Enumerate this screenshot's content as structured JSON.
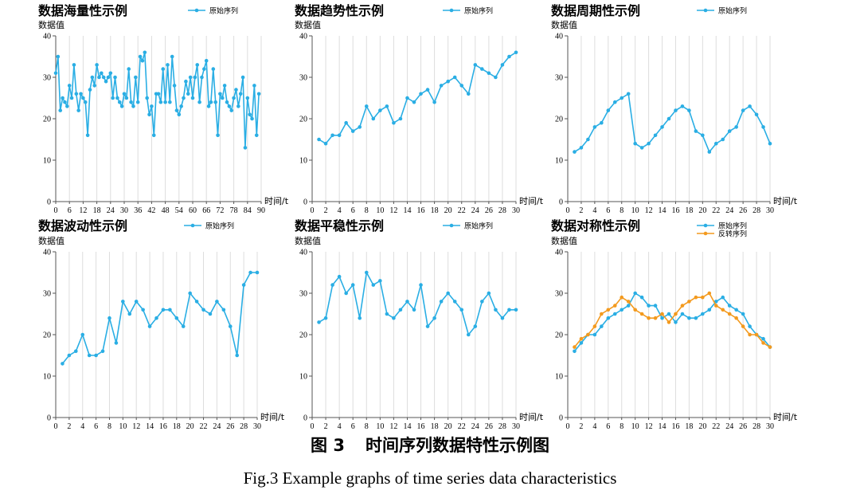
{
  "colors": {
    "series": "#2aaee4",
    "reversed": "#f39a1e",
    "grid": "#dddddd",
    "axis": "#555555"
  },
  "caption": {
    "cn_num": "图 3",
    "cn_text": "时间序列数据特性示例图",
    "en": "Fig.3    Example graphs of time series data characteristics"
  },
  "chart_data": [
    {
      "type": "line",
      "title": "数据海量性示例",
      "ylabel": "数据值",
      "xlabel": "时间/t",
      "ylim": [
        0,
        40
      ],
      "yticks": [
        0,
        10,
        20,
        30,
        40
      ],
      "xlim": [
        0,
        90
      ],
      "xticks": [
        0,
        6,
        12,
        18,
        24,
        30,
        36,
        42,
        48,
        54,
        60,
        66,
        72,
        78,
        84,
        90
      ],
      "grid": "vertical",
      "legend": "top-right",
      "series": [
        {
          "name": "原始序列",
          "x": [
            0,
            1,
            2,
            3,
            4,
            5,
            6,
            7,
            8,
            9,
            10,
            11,
            12,
            13,
            14,
            15,
            16,
            17,
            18,
            19,
            20,
            21,
            22,
            23,
            24,
            25,
            26,
            27,
            28,
            29,
            30,
            31,
            32,
            33,
            34,
            35,
            36,
            37,
            38,
            39,
            40,
            41,
            42,
            43,
            44,
            45,
            46,
            47,
            48,
            49,
            50,
            51,
            52,
            53,
            54,
            55,
            56,
            57,
            58,
            59,
            60,
            61,
            62,
            63,
            64,
            65,
            66,
            67,
            68,
            69,
            70,
            71,
            72,
            73,
            74,
            75,
            76,
            77,
            78,
            79,
            80,
            81,
            82,
            83,
            84,
            85,
            86,
            87,
            88,
            89
          ],
          "y": [
            31,
            35,
            22,
            25,
            24,
            23,
            28,
            25,
            33,
            26,
            22,
            26,
            25,
            24,
            16,
            27,
            30,
            28,
            33,
            30,
            31,
            30,
            29,
            30,
            31,
            25,
            30,
            25,
            24,
            23,
            26,
            25,
            32,
            24,
            23,
            30,
            24,
            35,
            34,
            36,
            25,
            21,
            23,
            16,
            26,
            26,
            24,
            32,
            24,
            33,
            24,
            35,
            28,
            22,
            21,
            23,
            25,
            29,
            26,
            30,
            25,
            30,
            33,
            24,
            30,
            32,
            34,
            23,
            24,
            32,
            24,
            16,
            26,
            25,
            28,
            24,
            23,
            22,
            25,
            27,
            23,
            26,
            30,
            13,
            25,
            21,
            20,
            28,
            16,
            26
          ]
        }
      ]
    },
    {
      "type": "line",
      "title": "数据趋势性示例",
      "ylabel": "数据值",
      "xlabel": "时间/t",
      "ylim": [
        0,
        40
      ],
      "yticks": [
        0,
        10,
        20,
        30,
        40
      ],
      "xlim": [
        0,
        30
      ],
      "xticks": [
        0,
        2,
        4,
        6,
        8,
        10,
        12,
        14,
        16,
        18,
        20,
        22,
        24,
        26,
        28,
        30
      ],
      "grid": "vertical",
      "legend": "top-right",
      "series": [
        {
          "name": "原始序列",
          "x": [
            1,
            2,
            3,
            4,
            5,
            6,
            7,
            8,
            9,
            10,
            11,
            12,
            13,
            14,
            15,
            16,
            17,
            18,
            19,
            20,
            21,
            22,
            23,
            24,
            25,
            26,
            27,
            28,
            29,
            30
          ],
          "y": [
            15,
            14,
            16,
            16,
            19,
            17,
            18,
            23,
            20,
            22,
            23,
            19,
            20,
            25,
            24,
            26,
            27,
            24,
            28,
            29,
            30,
            28,
            26,
            33,
            32,
            31,
            30,
            33,
            35,
            36
          ]
        }
      ]
    },
    {
      "type": "line",
      "title": "数据周期性示例",
      "ylabel": "数据值",
      "xlabel": "时间/t",
      "ylim": [
        0,
        40
      ],
      "yticks": [
        0,
        10,
        20,
        30,
        40
      ],
      "xlim": [
        0,
        30
      ],
      "xticks": [
        0,
        2,
        4,
        6,
        8,
        10,
        12,
        14,
        16,
        18,
        20,
        22,
        24,
        26,
        28,
        30
      ],
      "grid": "vertical",
      "legend": "top-right",
      "series": [
        {
          "name": "原始序列",
          "x": [
            1,
            2,
            3,
            4,
            5,
            6,
            7,
            8,
            9,
            10,
            11,
            12,
            13,
            14,
            15,
            16,
            17,
            18,
            19,
            20,
            21,
            22,
            23,
            24,
            25,
            26,
            27,
            28,
            29,
            30
          ],
          "y": [
            12,
            13,
            15,
            18,
            19,
            22,
            24,
            25,
            26,
            14,
            13,
            14,
            16,
            18,
            20,
            22,
            23,
            22,
            17,
            16,
            12,
            14,
            15,
            17,
            18,
            22,
            23,
            21,
            18,
            14
          ]
        }
      ]
    },
    {
      "type": "line",
      "title": "数据波动性示例",
      "ylabel": "数据值",
      "xlabel": "时间/t",
      "ylim": [
        0,
        40
      ],
      "yticks": [
        0,
        10,
        20,
        30,
        40
      ],
      "xlim": [
        0,
        30
      ],
      "xticks": [
        0,
        2,
        4,
        6,
        8,
        10,
        12,
        14,
        16,
        18,
        20,
        22,
        24,
        26,
        28,
        30
      ],
      "grid": "vertical",
      "legend": "top-right",
      "series": [
        {
          "name": "原始序列",
          "x": [
            1,
            2,
            3,
            4,
            5,
            6,
            7,
            8,
            9,
            10,
            11,
            12,
            13,
            14,
            15,
            16,
            17,
            18,
            19,
            20,
            21,
            22,
            23,
            24,
            25,
            26,
            27,
            28,
            29,
            30
          ],
          "y": [
            13,
            15,
            16,
            20,
            15,
            15,
            16,
            24,
            18,
            28,
            25,
            28,
            26,
            22,
            24,
            26,
            26,
            24,
            22,
            30,
            28,
            26,
            25,
            28,
            26,
            22,
            15,
            32,
            35,
            35
          ]
        }
      ]
    },
    {
      "type": "line",
      "title": "数据平稳性示例",
      "ylabel": "数据值",
      "xlabel": "时间/t",
      "ylim": [
        0,
        40
      ],
      "yticks": [
        0,
        10,
        20,
        30,
        40
      ],
      "xlim": [
        0,
        30
      ],
      "xticks": [
        0,
        2,
        4,
        6,
        8,
        10,
        12,
        14,
        16,
        18,
        20,
        22,
        24,
        26,
        28,
        30
      ],
      "grid": "vertical",
      "legend": "top-right",
      "series": [
        {
          "name": "原始序列",
          "x": [
            1,
            2,
            3,
            4,
            5,
            6,
            7,
            8,
            9,
            10,
            11,
            12,
            13,
            14,
            15,
            16,
            17,
            18,
            19,
            20,
            21,
            22,
            23,
            24,
            25,
            26,
            27,
            28,
            29,
            30
          ],
          "y": [
            23,
            24,
            32,
            34,
            30,
            32,
            24,
            35,
            32,
            33,
            25,
            24,
            26,
            28,
            26,
            32,
            22,
            24,
            28,
            30,
            28,
            26,
            20,
            22,
            28,
            30,
            26,
            24,
            26,
            26
          ]
        }
      ]
    },
    {
      "type": "line",
      "title": "数据对称性示例",
      "ylabel": "数据值",
      "xlabel": "时间/t",
      "ylim": [
        0,
        40
      ],
      "yticks": [
        0,
        10,
        20,
        30,
        40
      ],
      "xlim": [
        0,
        30
      ],
      "xticks": [
        0,
        2,
        4,
        6,
        8,
        10,
        12,
        14,
        16,
        18,
        20,
        22,
        24,
        26,
        28,
        30
      ],
      "grid": "vertical",
      "legend": "top-right",
      "series": [
        {
          "name": "原始序列",
          "x": [
            1,
            2,
            3,
            4,
            5,
            6,
            7,
            8,
            9,
            10,
            11,
            12,
            13,
            14,
            15,
            16,
            17,
            18,
            19,
            20,
            21,
            22,
            23,
            24,
            25,
            26,
            27,
            28,
            29,
            30
          ],
          "y": [
            16,
            18,
            20,
            20,
            22,
            24,
            25,
            26,
            27,
            30,
            29,
            27,
            27,
            24,
            25,
            23,
            25,
            24,
            24,
            25,
            26,
            28,
            29,
            27,
            26,
            25,
            22,
            20,
            19,
            17
          ]
        },
        {
          "name": "反转序列",
          "x": [
            1,
            2,
            3,
            4,
            5,
            6,
            7,
            8,
            9,
            10,
            11,
            12,
            13,
            14,
            15,
            16,
            17,
            18,
            19,
            20,
            21,
            22,
            23,
            24,
            25,
            26,
            27,
            28,
            29,
            30
          ],
          "y": [
            17,
            19,
            20,
            22,
            25,
            26,
            27,
            29,
            28,
            26,
            25,
            24,
            24,
            25,
            23,
            25,
            27,
            28,
            29,
            29,
            30,
            27,
            26,
            25,
            24,
            22,
            20,
            20,
            18,
            17
          ]
        }
      ]
    }
  ]
}
